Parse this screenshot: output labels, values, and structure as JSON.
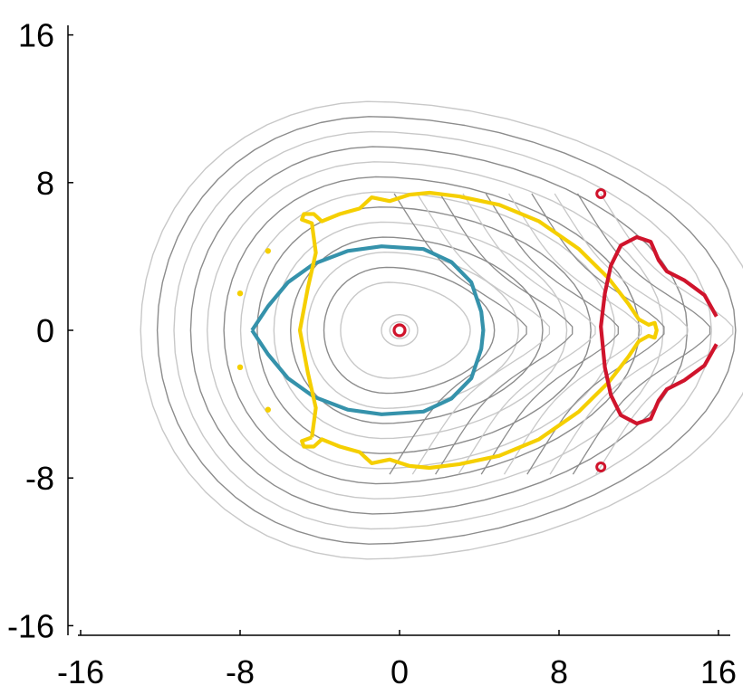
{
  "chart_data": {
    "type": "contour",
    "title": "",
    "xlabel": "",
    "ylabel": "",
    "xlim": [
      -16,
      16
    ],
    "ylim": [
      -16,
      16
    ],
    "x_ticks": [
      -16,
      -8,
      0,
      8,
      16
    ],
    "y_ticks": [
      -16,
      -8,
      0,
      8,
      16
    ],
    "x_tick_labels": [
      "-16",
      "-8",
      "0",
      "8",
      "16"
    ],
    "y_tick_labels": [
      "16",
      "8",
      "0",
      "-8",
      "-16"
    ],
    "grid": false,
    "colors": {
      "background_contours_light": "#c8c8c8",
      "background_contours_dark": "#8c8c8c",
      "blue": "#3592ab",
      "yellow": "#f5cf00",
      "red": "#d0142c"
    },
    "series": [
      {
        "color": "blue",
        "points": [
          [
            -7.4,
            0
          ],
          [
            -6.6,
            1.3
          ],
          [
            -5.6,
            2.6
          ],
          [
            -4.3,
            3.6
          ],
          [
            -2.6,
            4.3
          ],
          [
            -0.9,
            4.55
          ],
          [
            1.2,
            4.4
          ],
          [
            2.6,
            3.7
          ],
          [
            3.6,
            2.6
          ],
          [
            4.1,
            1.0
          ],
          [
            4.2,
            0
          ],
          [
            4.1,
            -1.0
          ],
          [
            3.6,
            -2.6
          ],
          [
            2.6,
            -3.7
          ],
          [
            1.2,
            -4.4
          ],
          [
            -0.9,
            -4.55
          ],
          [
            -2.6,
            -4.3
          ],
          [
            -4.3,
            -3.6
          ],
          [
            -5.6,
            -2.6
          ],
          [
            -6.6,
            -1.3
          ],
          [
            -7.4,
            0
          ]
        ]
      },
      {
        "color": "yellow",
        "points": [
          [
            -4.4,
            -5.8
          ],
          [
            -4.2,
            -4.2
          ],
          [
            -4.6,
            -2.3
          ],
          [
            -5.0,
            0
          ],
          [
            -4.6,
            2.3
          ],
          [
            -4.2,
            4.2
          ],
          [
            -4.4,
            5.8
          ],
          [
            -4.9,
            6.0
          ],
          [
            -4.8,
            6.3
          ],
          [
            -4.3,
            6.3
          ],
          [
            -3.9,
            5.9
          ],
          [
            -3.0,
            6.3
          ],
          [
            -2.0,
            6.6
          ],
          [
            -1.4,
            7.2
          ],
          [
            -0.5,
            7.0
          ],
          [
            0.5,
            7.35
          ],
          [
            1.5,
            7.45
          ],
          [
            3.0,
            7.25
          ],
          [
            5.0,
            6.8
          ],
          [
            7.0,
            5.9
          ],
          [
            9.0,
            4.4
          ],
          [
            10.5,
            2.8
          ],
          [
            11.5,
            1.4
          ],
          [
            12.0,
            0.6
          ],
          [
            12.5,
            0.3
          ],
          [
            12.8,
            0.4
          ],
          [
            12.9,
            0
          ],
          [
            12.8,
            -0.4
          ],
          [
            12.5,
            -0.3
          ],
          [
            12.0,
            -0.6
          ],
          [
            11.5,
            -1.4
          ],
          [
            10.5,
            -2.8
          ],
          [
            9.0,
            -4.4
          ],
          [
            7.0,
            -5.9
          ],
          [
            5.0,
            -6.8
          ],
          [
            3.0,
            -7.25
          ],
          [
            1.5,
            -7.45
          ],
          [
            0.5,
            -7.35
          ],
          [
            -0.5,
            -7.0
          ],
          [
            -1.4,
            -7.2
          ],
          [
            -2.0,
            -6.6
          ],
          [
            -3.0,
            -6.3
          ],
          [
            -3.9,
            -5.9
          ],
          [
            -4.3,
            -6.3
          ],
          [
            -4.8,
            -6.3
          ],
          [
            -4.9,
            -6.0
          ],
          [
            -4.4,
            -5.8
          ]
        ]
      },
      {
        "color": "red",
        "points": [
          [
            15.9,
            0.75
          ],
          [
            15.3,
            1.9
          ],
          [
            14.3,
            2.7
          ],
          [
            13.4,
            3.2
          ],
          [
            13.0,
            3.8
          ],
          [
            12.6,
            4.8
          ],
          [
            11.9,
            5.05
          ],
          [
            11.1,
            4.6
          ],
          [
            10.6,
            3.5
          ],
          [
            10.3,
            2.0
          ],
          [
            10.1,
            0.2
          ],
          [
            10.3,
            -2.0
          ],
          [
            10.6,
            -3.5
          ],
          [
            11.1,
            -4.6
          ],
          [
            11.9,
            -5.05
          ],
          [
            12.6,
            -4.8
          ],
          [
            13.0,
            -3.8
          ],
          [
            13.4,
            -3.2
          ],
          [
            14.3,
            -2.7
          ],
          [
            15.3,
            -1.9
          ],
          [
            15.9,
            -0.75
          ]
        ]
      }
    ]
  }
}
